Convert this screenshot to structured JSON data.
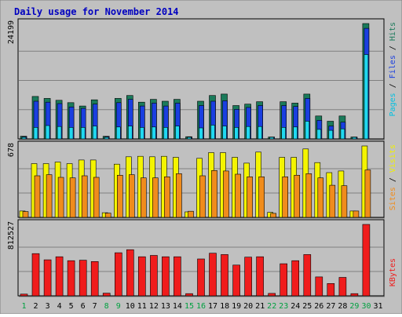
{
  "chart_data": {
    "type": "bar",
    "title": "Daily usage for November 2014",
    "days": [
      "1",
      "2",
      "3",
      "4",
      "5",
      "6",
      "7",
      "8",
      "9",
      "10",
      "11",
      "12",
      "13",
      "14",
      "15",
      "16",
      "17",
      "18",
      "19",
      "20",
      "21",
      "22",
      "23",
      "24",
      "25",
      "26",
      "27",
      "28",
      "29",
      "30",
      "31"
    ],
    "weekend_days": [
      "1",
      "8",
      "9",
      "15",
      "16",
      "22",
      "23",
      "29",
      "30"
    ],
    "panels": [
      {
        "id": "pages-files-hits",
        "max_label": "24199",
        "max": 24199,
        "series": [
          {
            "name": "Hits",
            "color": "#1a7a5a",
            "values": [
              560,
              8900,
              8500,
              8100,
              7600,
              6900,
              8200,
              550,
              8500,
              9100,
              7700,
              8300,
              7900,
              8300,
              460,
              7900,
              9100,
              9400,
              7000,
              7300,
              7800,
              400,
              7800,
              7500,
              9400,
              4800,
              3700,
              4800,
              400,
              24199,
              0
            ]
          },
          {
            "name": "Files",
            "color": "#1a3fe0",
            "values": [
              420,
              7900,
              7700,
              7400,
              6700,
              6400,
              7300,
              420,
              7600,
              8300,
              6900,
              7500,
              6900,
              7500,
              330,
              7000,
              7900,
              8000,
              6200,
              6600,
              7000,
              320,
              7000,
              6800,
              8500,
              3900,
              2700,
              3500,
              330,
              23200,
              0
            ]
          },
          {
            "name": "Pages",
            "color": "#20d8f0",
            "values": [
              210,
              2400,
              2800,
              2600,
              2400,
              2400,
              2700,
              180,
              2500,
              2700,
              2400,
              2500,
              2400,
              2700,
              140,
              2300,
              2900,
              2700,
              2400,
              2600,
              2600,
              140,
              2400,
              2500,
              3700,
              2000,
              1800,
              2100,
              180,
              17700,
              0
            ]
          }
        ]
      },
      {
        "id": "visits-sites",
        "max_label": "678",
        "max": 678,
        "series": [
          {
            "name": "Visits",
            "color": "#f4f400",
            "values": [
              60,
              510,
              510,
              525,
              510,
              545,
              545,
              44,
              505,
              575,
              580,
              575,
              580,
              570,
              52,
              560,
              615,
              615,
              570,
              515,
              620,
              48,
              570,
              570,
              650,
              520,
              425,
              440,
              60,
              678,
              0
            ]
          },
          {
            "name": "Sites",
            "color": "#f08c1c",
            "values": [
              55,
              395,
              405,
              380,
              375,
              395,
              380,
              40,
              400,
              405,
              375,
              375,
              385,
              415,
              58,
              395,
              445,
              440,
              410,
              385,
              385,
              38,
              385,
              400,
              415,
              375,
              305,
              300,
              60,
              450,
              0
            ]
          }
        ]
      },
      {
        "id": "kbytes",
        "max_label": "812527",
        "max": 812527,
        "series": [
          {
            "name": "KBytes",
            "color": "#f01c1c",
            "values": [
              20000,
              480000,
              410000,
              445000,
              400000,
              405000,
              390000,
              30000,
              490000,
              525000,
              445000,
              460000,
              445000,
              445000,
              25000,
              420000,
              485000,
              470000,
              350000,
              440000,
              445000,
              28000,
              365000,
              400000,
              470000,
              215000,
              140000,
              210000,
              25000,
              812527,
              0
            ]
          }
        ]
      }
    ],
    "panel_labels": {
      "pages": "Pages",
      "files": "Files",
      "hits": "Hits",
      "sites": "Sites",
      "visits": "Visits",
      "kbytes": "KBytes",
      "sep": " / "
    },
    "colors": {
      "background": "#c0c0c0",
      "title": "#0000c0",
      "axis_label": "#000000",
      "weekday_label": "#000000",
      "weekend_label": "#00a040",
      "pages_label": "#00c0e0",
      "files_label": "#1a3fe0",
      "hits_label": "#1a7a5a",
      "visits_label": "#f0f000",
      "sites_label": "#f08c1c",
      "kbytes_label": "#f01c1c"
    }
  }
}
